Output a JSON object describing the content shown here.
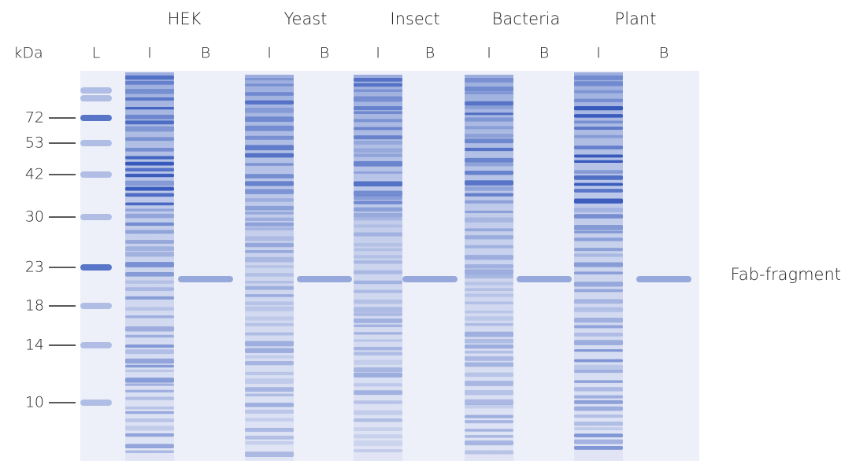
{
  "unit_label": "kDa",
  "groups": [
    "HEK",
    "Yeast",
    "Insect",
    "Bacteria",
    "Plant"
  ],
  "lanes": [
    "L",
    "I",
    "B",
    "I",
    "B",
    "I",
    "B",
    "I",
    "B",
    "I",
    "B"
  ],
  "markers": [
    "72",
    "53",
    "42",
    "30",
    "23",
    "18",
    "14",
    "10"
  ],
  "annotation": "Fab-fragment"
}
